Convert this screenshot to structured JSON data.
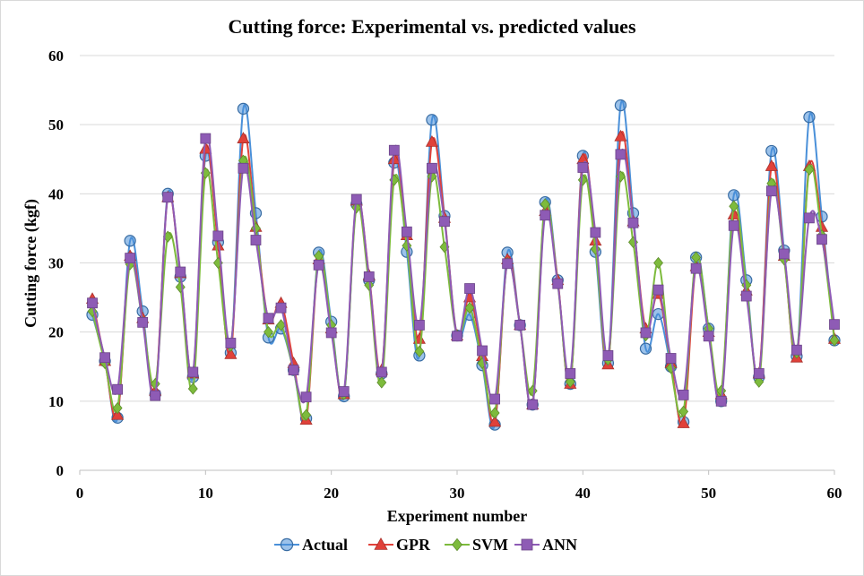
{
  "chart_data": {
    "type": "line",
    "title": "Cutting force: Experimental vs. predicted values",
    "xlabel": "Experiment number",
    "ylabel": "Cutting force (kgf)",
    "xlim": [
      0,
      60
    ],
    "ylim": [
      0,
      60
    ],
    "xticks": [
      0,
      10,
      20,
      30,
      40,
      50,
      60
    ],
    "yticks": [
      0,
      10,
      20,
      30,
      40,
      50,
      60
    ],
    "grid": "horizontal",
    "legend_position": "bottom",
    "x": [
      1,
      2,
      3,
      4,
      5,
      6,
      7,
      8,
      9,
      10,
      11,
      12,
      13,
      14,
      15,
      16,
      17,
      18,
      19,
      20,
      21,
      22,
      23,
      24,
      25,
      26,
      27,
      28,
      29,
      30,
      31,
      32,
      33,
      34,
      35,
      36,
      37,
      38,
      39,
      40,
      41,
      42,
      43,
      44,
      45,
      46,
      47,
      48,
      49,
      50,
      51,
      52,
      53,
      54,
      55,
      56,
      57,
      58,
      59,
      60
    ],
    "series": [
      {
        "name": "Actual",
        "color": "#4a90d9",
        "marker": "circle",
        "values": [
          22.5,
          15.8,
          7.6,
          33.2,
          23.0,
          11.0,
          40.0,
          28.0,
          13.5,
          45.5,
          33.0,
          17.0,
          52.3,
          37.2,
          19.2,
          20.5,
          14.5,
          7.5,
          31.5,
          21.5,
          10.7,
          38.5,
          27.5,
          14.0,
          44.5,
          31.6,
          16.6,
          50.7,
          36.8,
          19.5,
          22.5,
          15.2,
          6.6,
          31.5,
          21.0,
          9.5,
          38.8,
          27.5,
          12.5,
          45.5,
          31.6,
          15.5,
          52.8,
          37.2,
          17.6,
          22.6,
          15.0,
          7.0,
          30.8,
          20.5,
          10.0,
          39.8,
          27.5,
          13.5,
          46.2,
          31.8,
          16.5,
          51.1,
          36.7,
          18.8
        ]
      },
      {
        "name": "GPR",
        "color": "#e0413a",
        "marker": "triangle",
        "values": [
          24.8,
          15.8,
          8.0,
          31.0,
          22.0,
          11.5,
          39.5,
          28.5,
          14.0,
          46.5,
          32.5,
          16.8,
          48.0,
          35.2,
          21.8,
          24.2,
          15.5,
          7.3,
          30.5,
          20.5,
          11.0,
          39.0,
          28.2,
          14.5,
          45.0,
          34.0,
          19.0,
          47.5,
          36.5,
          19.5,
          25.0,
          16.5,
          7.0,
          30.5,
          21.0,
          9.5,
          37.5,
          27.5,
          12.5,
          45.0,
          33.2,
          15.3,
          48.3,
          36.0,
          20.5,
          25.5,
          15.5,
          6.8,
          29.5,
          20.0,
          11.0,
          37.0,
          26.0,
          14.0,
          44.0,
          31.0,
          16.3,
          44.0,
          35.2,
          19.0
        ]
      },
      {
        "name": "SVM",
        "color": "#7dbb3c",
        "marker": "diamond",
        "values": [
          23.0,
          15.5,
          9.0,
          29.8,
          21.5,
          12.5,
          33.8,
          26.5,
          11.8,
          43.0,
          30.0,
          18.0,
          44.8,
          35.0,
          20.0,
          21.0,
          14.5,
          8.0,
          31.0,
          21.0,
          11.0,
          38.0,
          26.8,
          12.7,
          42.0,
          32.5,
          17.2,
          42.5,
          32.3,
          19.5,
          23.5,
          15.5,
          8.3,
          30.0,
          21.0,
          11.5,
          38.5,
          27.0,
          12.8,
          42.0,
          32.0,
          16.0,
          42.5,
          33.0,
          19.5,
          30.0,
          14.8,
          8.5,
          30.8,
          20.5,
          11.5,
          38.2,
          26.8,
          12.8,
          41.5,
          30.5,
          17.0,
          43.5,
          34.0,
          18.8
        ]
      },
      {
        "name": "ANN",
        "color": "#8e5bb5",
        "marker": "square",
        "values": [
          24.2,
          16.3,
          11.7,
          30.7,
          21.4,
          10.8,
          39.5,
          28.7,
          14.2,
          48.0,
          33.9,
          18.4,
          43.7,
          33.3,
          22.0,
          23.5,
          14.5,
          10.6,
          29.7,
          19.9,
          11.4,
          39.2,
          28.0,
          14.2,
          46.3,
          34.5,
          21.0,
          43.7,
          36.0,
          19.4,
          26.3,
          17.3,
          10.3,
          29.9,
          21.0,
          9.5,
          36.9,
          27.0,
          14.0,
          43.8,
          34.4,
          16.6,
          45.7,
          35.8,
          19.9,
          26.1,
          16.2,
          10.9,
          29.2,
          19.4,
          10.0,
          35.4,
          25.2,
          14.0,
          40.4,
          31.3,
          17.4,
          36.5,
          33.4,
          21.1
        ]
      }
    ]
  }
}
